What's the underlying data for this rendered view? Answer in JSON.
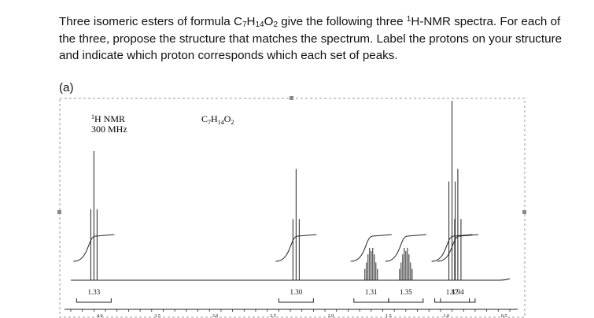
{
  "question": {
    "line1_a": "Three isomeric esters of formula C",
    "f_c": "7",
    "f_mid1": "H",
    "f_h": "14",
    "f_mid2": "O",
    "f_o": "2",
    "line1_b": " give the following three ",
    "sup1": "1",
    "line1_c": "H-NMR spectra. For each of the three, propose the structure that matches the spectrum. Label the protons on your structure and indicate which proton corresponds which each set of peaks."
  },
  "part_label": "(a)",
  "chart_data": {
    "type": "line",
    "nmr_label_sup": "1",
    "nmr_label": "H NMR",
    "frequency": "300 MHz",
    "formula": {
      "c": "C",
      "c_n": "7",
      "h": "H",
      "h_n": "14",
      "o": "O",
      "o_n": "2"
    },
    "x_axis_ticks": [
      "4.0",
      "3.5",
      "3.0",
      "2.5",
      "2.0",
      "1.5",
      "1.0",
      "0.5"
    ],
    "x_range_ppm": [
      4.25,
      0.45
    ],
    "x_direction": "decreasing to the right",
    "peaks": [
      {
        "shift_ppm": 4.05,
        "multiplicity": "triplet",
        "relative_height": 0.72,
        "integration_label": "1.33"
      },
      {
        "shift_ppm": 2.3,
        "multiplicity": "triplet",
        "relative_height": 0.62,
        "integration_label": "1.30"
      },
      {
        "shift_ppm": 1.65,
        "multiplicity": "multiplet",
        "relative_height": 0.18,
        "integration_label": "1.31"
      },
      {
        "shift_ppm": 1.35,
        "multiplicity": "multiplet",
        "relative_height": 0.18,
        "integration_label": "1.35"
      },
      {
        "shift_ppm": 0.95,
        "multiplicity": "triplet",
        "relative_height": 1.0,
        "integration_label": "1.87"
      },
      {
        "shift_ppm": 0.9,
        "multiplicity": "triplet",
        "relative_height": 0.62,
        "integration_label": "1.94"
      }
    ]
  }
}
